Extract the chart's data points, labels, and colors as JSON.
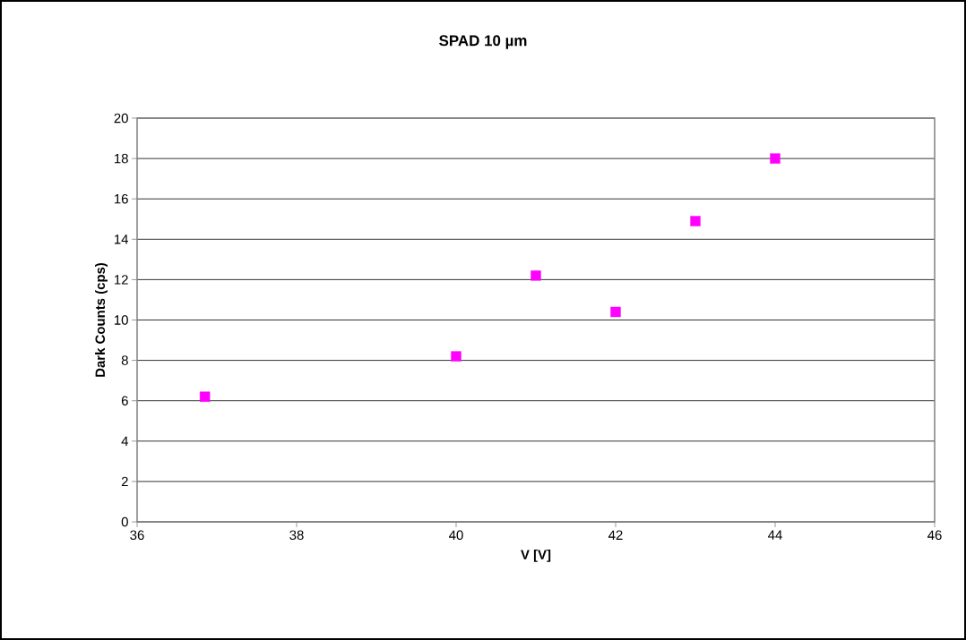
{
  "chart_data": {
    "type": "scatter",
    "title": "SPAD 10 µm",
    "xlabel": "V [V]",
    "ylabel": "Dark Counts (cps)",
    "x": [
      36.85,
      40,
      41,
      42,
      43,
      44
    ],
    "series": [
      {
        "color": "#ff00ff",
        "values": [
          6.2,
          8.2,
          12.2,
          10.4,
          14.9,
          18.0
        ]
      }
    ],
    "xlim": [
      36,
      46
    ],
    "xticks": [
      36,
      38,
      40,
      42,
      44,
      46
    ],
    "ylim": [
      0,
      20
    ],
    "yticks": [
      0,
      2,
      4,
      6,
      8,
      10,
      12,
      14,
      16,
      18,
      20
    ],
    "grid": "y",
    "marker": "square"
  }
}
